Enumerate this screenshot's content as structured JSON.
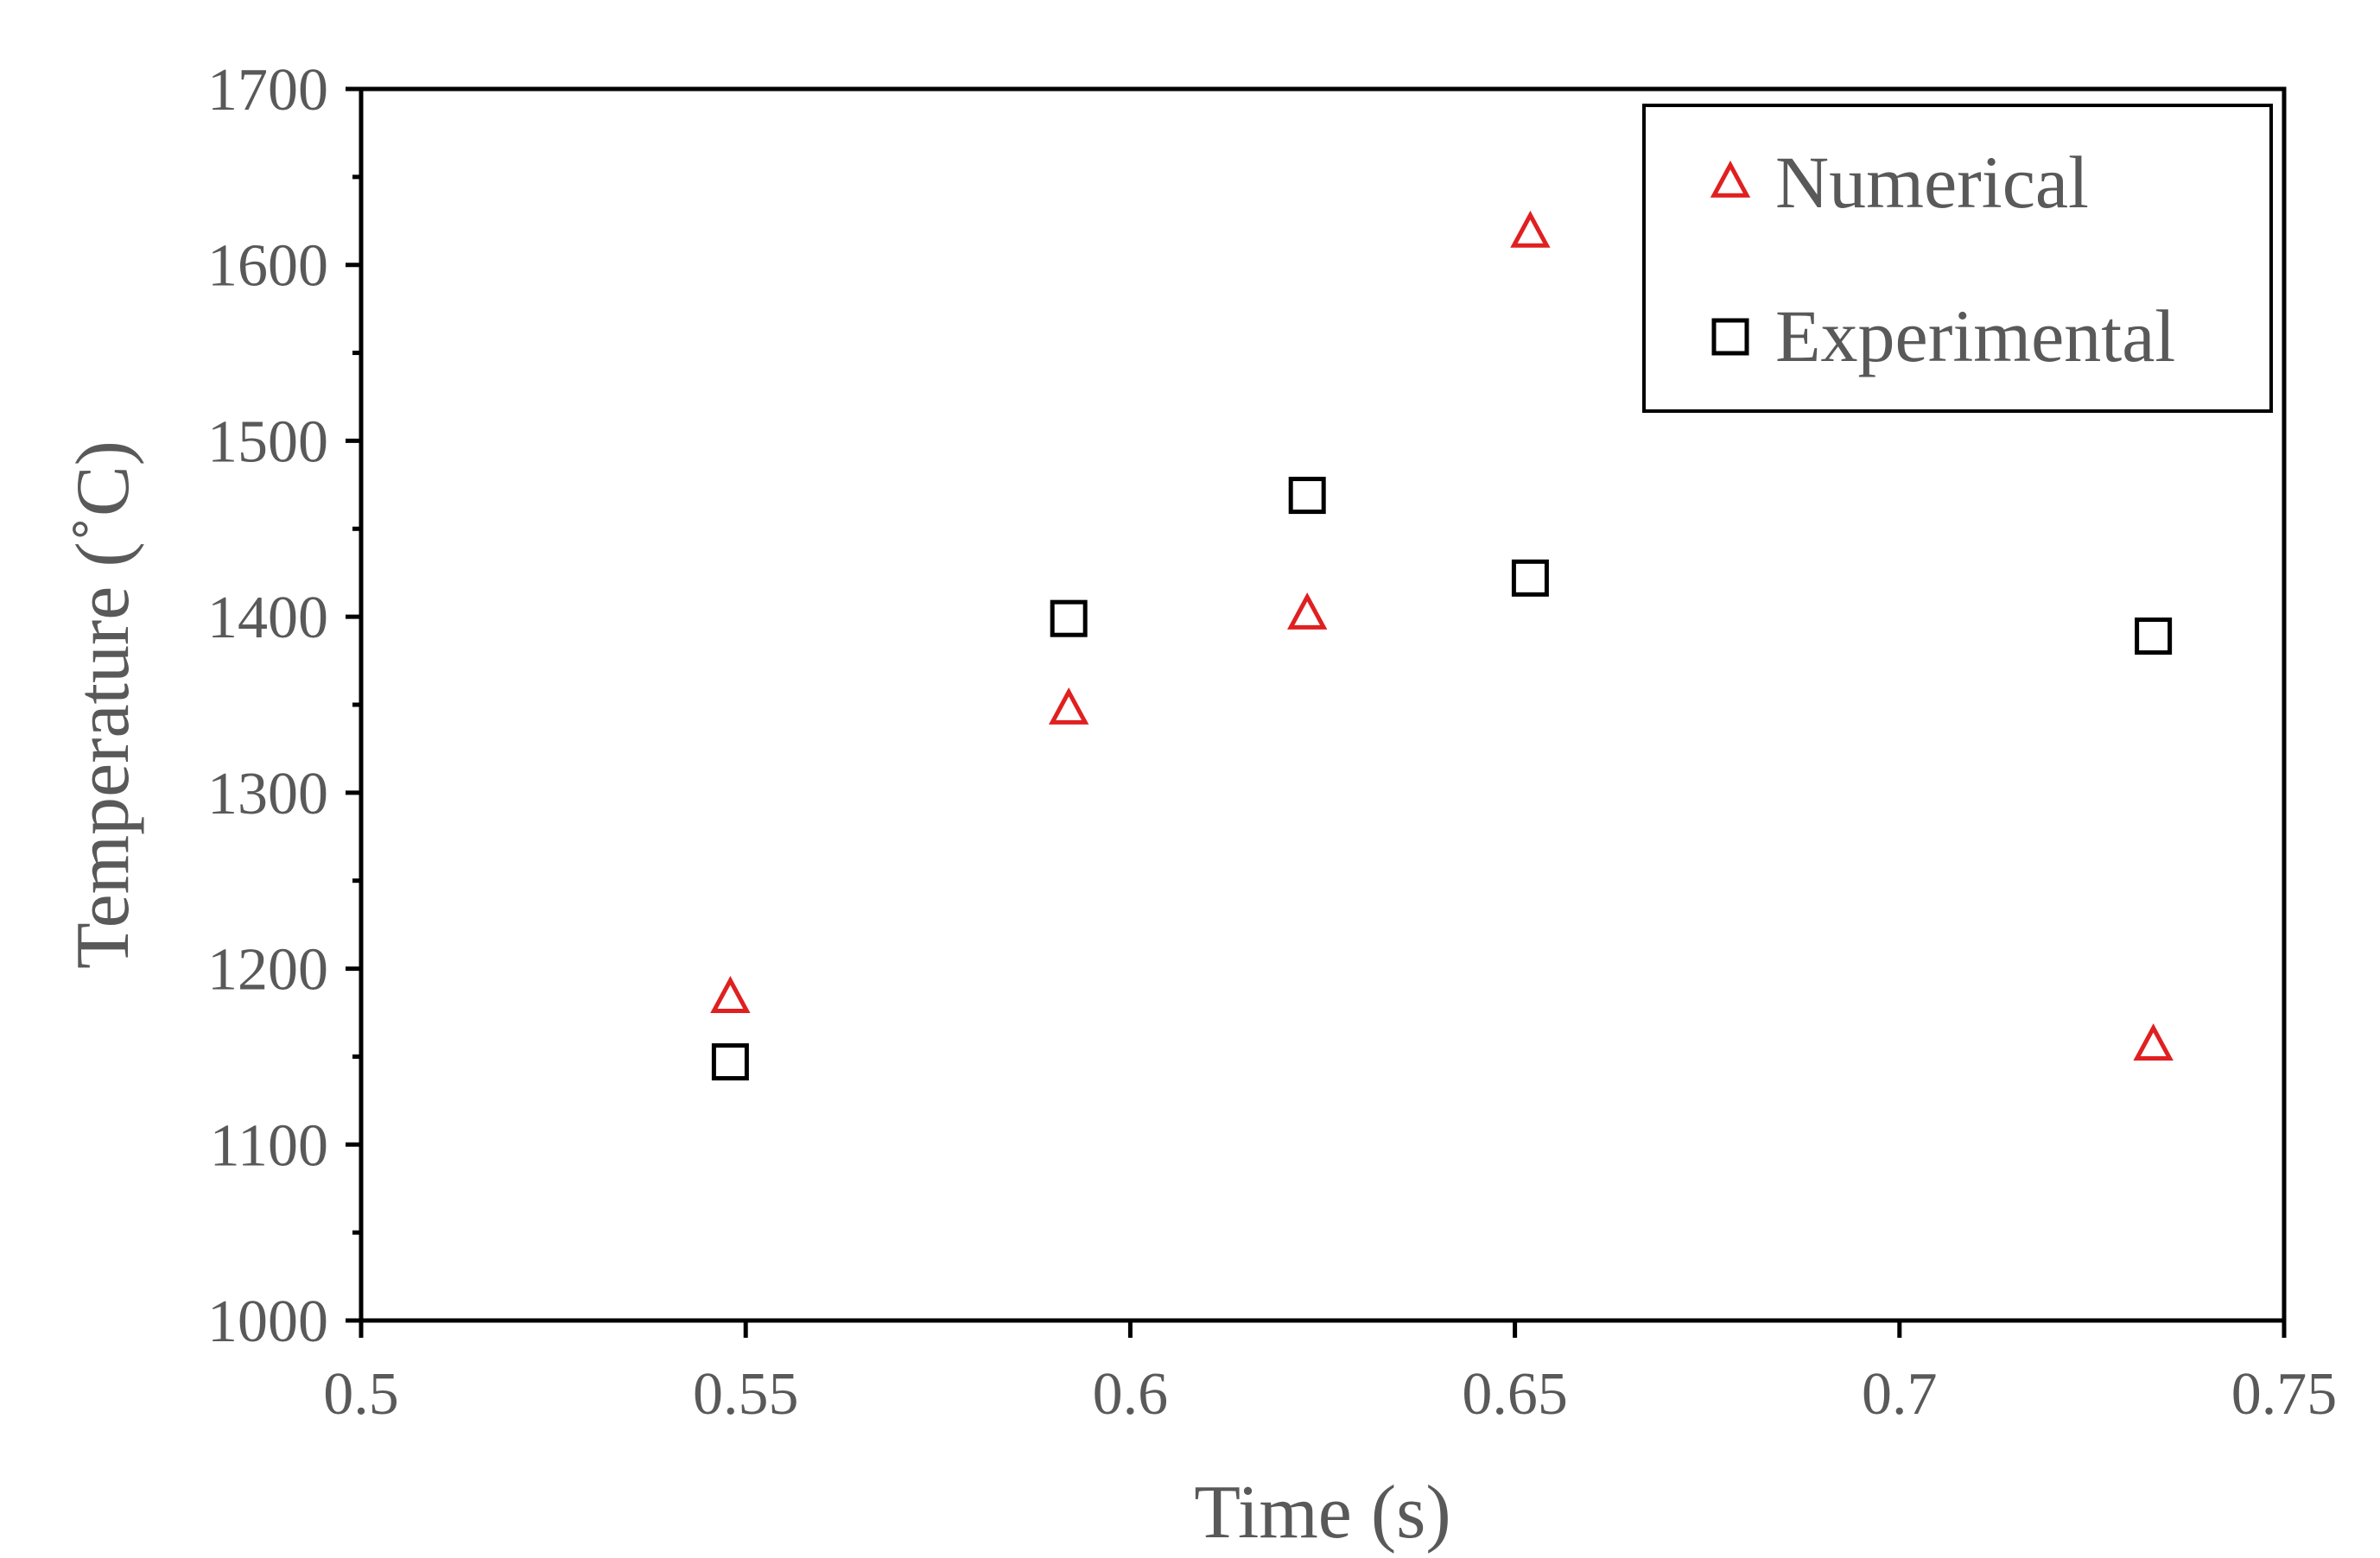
{
  "chart_data": {
    "type": "scatter",
    "title": "",
    "xlabel": "Time (s)",
    "ylabel": "Temperature (˚C)",
    "xlim": [
      0.5,
      0.75
    ],
    "ylim": [
      1000,
      1700
    ],
    "xticks": [
      0.5,
      0.55,
      0.6,
      0.65,
      0.7,
      0.75
    ],
    "xtick_labels": [
      "0.5",
      "0.55",
      "0.6",
      "0.65",
      "0.7",
      "0.75"
    ],
    "yticks": [
      1000,
      1100,
      1200,
      1300,
      1400,
      1500,
      1600,
      1700
    ],
    "ytick_labels": [
      "1000",
      "1100",
      "1200",
      "1300",
      "1400",
      "1500",
      "1600",
      "1700"
    ],
    "grid": false,
    "legend_position": "top-right",
    "series": [
      {
        "name": "Numerical",
        "marker": "triangle",
        "color": "#e02020",
        "points": [
          {
            "x": 0.548,
            "y": 1183
          },
          {
            "x": 0.592,
            "y": 1347
          },
          {
            "x": 0.623,
            "y": 1401
          },
          {
            "x": 0.652,
            "y": 1618
          },
          {
            "x": 0.733,
            "y": 1156
          }
        ]
      },
      {
        "name": "Experimental",
        "marker": "square",
        "color": "#000000",
        "points": [
          {
            "x": 0.548,
            "y": 1147
          },
          {
            "x": 0.592,
            "y": 1399
          },
          {
            "x": 0.623,
            "y": 1469
          },
          {
            "x": 0.652,
            "y": 1422
          },
          {
            "x": 0.733,
            "y": 1389
          }
        ]
      }
    ]
  }
}
